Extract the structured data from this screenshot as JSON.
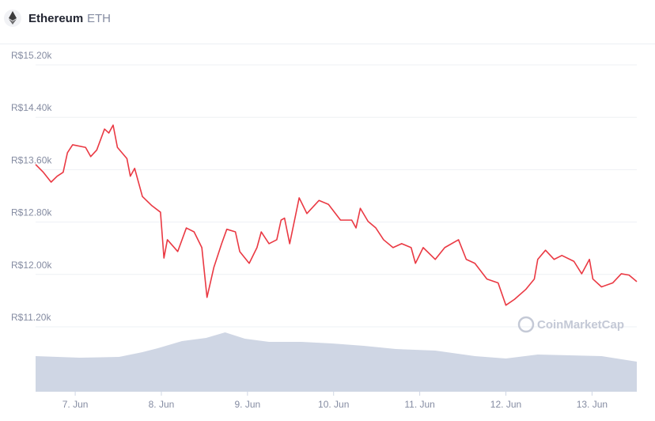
{
  "chart_data": {
    "type": "line",
    "title": "Ethereum",
    "subtitle": "ETH",
    "watermark": "CoinMarketCap",
    "xlim": [
      6.54,
      13.52
    ],
    "xticks": [
      {
        "value": 7,
        "label": "7. Jun"
      },
      {
        "value": 8,
        "label": "8. Jun"
      },
      {
        "value": 9,
        "label": "9. Jun"
      },
      {
        "value": 10,
        "label": "10. Jun"
      },
      {
        "value": 11,
        "label": "11. Jun"
      },
      {
        "value": 12,
        "label": "12. Jun"
      },
      {
        "value": 13,
        "label": "13. Jun"
      }
    ],
    "ylim": [
      11200,
      15200
    ],
    "yticks": [
      {
        "value": 11200,
        "label": "R$11.20k"
      },
      {
        "value": 12000,
        "label": "R$12.00k"
      },
      {
        "value": 12800,
        "label": "R$12.80k"
      },
      {
        "value": 13600,
        "label": "R$13.60k"
      },
      {
        "value": 14400,
        "label": "R$14.40k"
      },
      {
        "value": 15200,
        "label": "R$15.20k"
      }
    ],
    "grid": true,
    "series": [
      {
        "color": "#ea3943",
        "x": [
          6.54,
          6.63,
          6.72,
          6.79,
          6.86,
          6.91,
          6.97,
          7.12,
          7.18,
          7.25,
          7.34,
          7.39,
          7.44,
          7.49,
          7.6,
          7.64,
          7.69,
          7.78,
          7.89,
          7.99,
          8.03,
          8.07,
          8.19,
          8.29,
          8.38,
          8.47,
          8.53,
          8.61,
          8.7,
          8.76,
          8.86,
          8.91,
          9.02,
          9.11,
          9.16,
          9.25,
          9.34,
          9.39,
          9.43,
          9.49,
          9.6,
          9.69,
          9.83,
          9.94,
          10.08,
          10.21,
          10.26,
          10.31,
          10.4,
          10.49,
          10.58,
          10.69,
          10.79,
          10.9,
          10.95,
          11.04,
          11.18,
          11.29,
          11.45,
          11.54,
          11.64,
          11.78,
          11.91,
          12.0,
          12.1,
          12.23,
          12.33,
          12.37,
          12.46,
          12.56,
          12.65,
          12.79,
          12.88,
          12.97,
          13.01,
          13.11,
          13.24,
          13.34,
          13.43,
          13.52
        ],
        "values": [
          13680,
          13560,
          13410,
          13500,
          13560,
          13860,
          13980,
          13940,
          13800,
          13900,
          14220,
          14160,
          14280,
          13940,
          13770,
          13500,
          13620,
          13190,
          13050,
          12950,
          12250,
          12530,
          12350,
          12710,
          12650,
          12410,
          11650,
          12110,
          12470,
          12690,
          12650,
          12350,
          12170,
          12410,
          12650,
          12470,
          12530,
          12830,
          12860,
          12470,
          13170,
          12930,
          13130,
          13070,
          12830,
          12830,
          12710,
          13010,
          12810,
          12710,
          12530,
          12410,
          12470,
          12410,
          12170,
          12410,
          12230,
          12410,
          12530,
          12230,
          12170,
          11930,
          11870,
          11530,
          11620,
          11770,
          11930,
          12230,
          12370,
          12230,
          12290,
          12200,
          12010,
          12230,
          11930,
          11810,
          11870,
          12010,
          11990,
          11890
        ]
      }
    ],
    "volume": {
      "color": "#cfd6e4",
      "ylim": [
        0,
        80
      ],
      "x": [
        6.54,
        7.05,
        7.51,
        7.78,
        7.96,
        8.24,
        8.52,
        8.74,
        8.97,
        9.25,
        9.62,
        9.98,
        10.35,
        10.72,
        11.18,
        11.64,
        12.0,
        12.37,
        12.74,
        13.11,
        13.52
      ],
      "values": [
        45,
        43,
        44,
        50,
        55,
        64,
        68,
        75,
        67,
        63,
        63,
        61,
        58,
        54,
        52,
        45,
        42,
        47,
        46,
        45,
        38
      ]
    }
  }
}
